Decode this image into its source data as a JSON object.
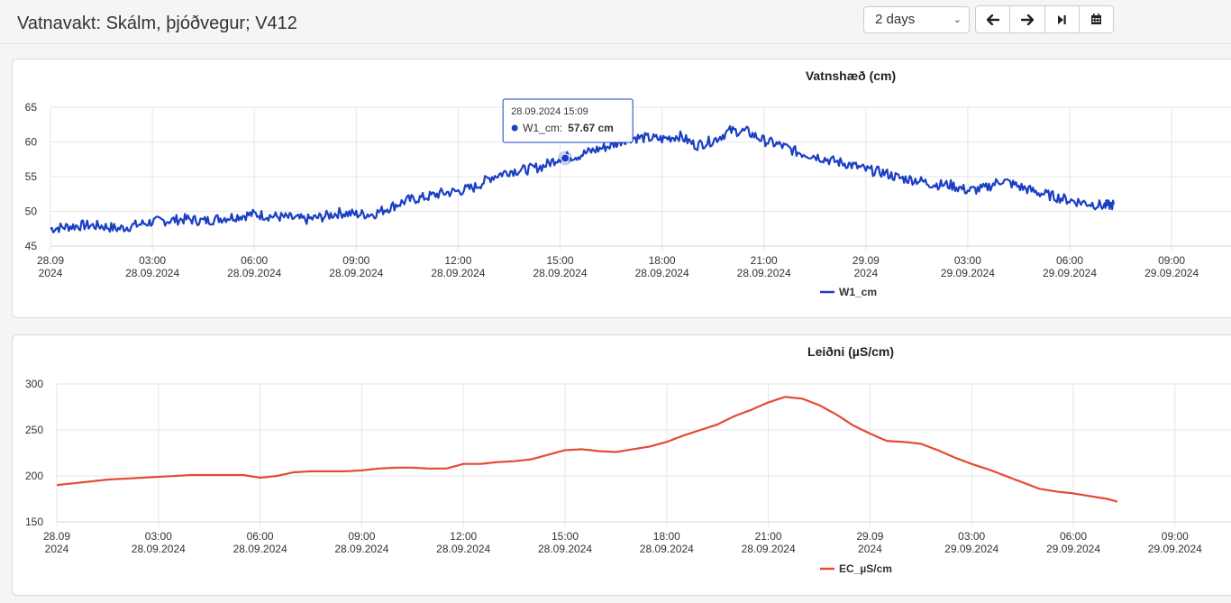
{
  "page": {
    "title": "Vatnavakt: Skálm, þjóðvegur; V412"
  },
  "controls": {
    "period": "2 days",
    "buttons": [
      {
        "name": "back-button",
        "icon": "arrow-left-icon"
      },
      {
        "name": "forward-button",
        "icon": "arrow-right-icon"
      },
      {
        "name": "latest-button",
        "icon": "step-forward-icon"
      },
      {
        "name": "calendar-button",
        "icon": "calendar-icon"
      }
    ]
  },
  "chart_data": [
    {
      "type": "line",
      "title": "Vatnshæð (cm)",
      "ylim": [
        45,
        65
      ],
      "yticks": [
        45,
        50,
        55,
        60,
        65
      ],
      "grid": true,
      "legend_placement": "bottom-center",
      "color": "#1b3fc4",
      "xticks": [
        {
          "hour": 0,
          "line1": "28.09",
          "line2": "2024"
        },
        {
          "hour": 3,
          "line1": "03:00",
          "line2": "28.09.2024"
        },
        {
          "hour": 6,
          "line1": "06:00",
          "line2": "28.09.2024"
        },
        {
          "hour": 9,
          "line1": "09:00",
          "line2": "28.09.2024"
        },
        {
          "hour": 12,
          "line1": "12:00",
          "line2": "28.09.2024"
        },
        {
          "hour": 15,
          "line1": "15:00",
          "line2": "28.09.2024"
        },
        {
          "hour": 18,
          "line1": "18:00",
          "line2": "28.09.2024"
        },
        {
          "hour": 21,
          "line1": "21:00",
          "line2": "28.09.2024"
        },
        {
          "hour": 24,
          "line1": "29.09",
          "line2": "2024"
        },
        {
          "hour": 27,
          "line1": "03:00",
          "line2": "29.09.2024"
        },
        {
          "hour": 30,
          "line1": "06:00",
          "line2": "29.09.2024"
        },
        {
          "hour": 33,
          "line1": "09:00",
          "line2": "29.09.2024"
        }
      ],
      "series": [
        {
          "name": "W1_cm",
          "x_hours": [
            0,
            0.5,
            1,
            1.5,
            2,
            2.5,
            3,
            3.5,
            4,
            4.5,
            5,
            5.5,
            6,
            6.5,
            7,
            7.5,
            8,
            8.5,
            9,
            9.5,
            10,
            10.5,
            11,
            11.5,
            12,
            12.5,
            13,
            13.5,
            14,
            14.5,
            15,
            15.5,
            16,
            16.5,
            17,
            17.5,
            18,
            18.5,
            19,
            19.5,
            20,
            20.5,
            21,
            21.5,
            22,
            22.5,
            23,
            23.5,
            24,
            24.5,
            25,
            25.5,
            26,
            26.5,
            27,
            27.5,
            28,
            28.5,
            29,
            29.5,
            30,
            30.5,
            31,
            31.3
          ],
          "values": [
            47.5,
            47.8,
            48.0,
            47.9,
            47.5,
            48.0,
            48.5,
            48.7,
            48.9,
            48.6,
            49.0,
            49.3,
            49.6,
            49.3,
            49.1,
            48.8,
            49.2,
            49.8,
            49.6,
            49.6,
            50.6,
            51.6,
            52.0,
            52.6,
            52.9,
            53.5,
            55.0,
            55.8,
            56.0,
            56.5,
            57.8,
            58.0,
            58.8,
            59.5,
            60.6,
            60.6,
            60.4,
            60.9,
            59.5,
            60.2,
            61.6,
            61.5,
            60.2,
            59.5,
            58.5,
            58.0,
            57.3,
            56.8,
            56.0,
            55.6,
            54.8,
            54.5,
            53.9,
            53.8,
            53.0,
            53.3,
            54.5,
            53.6,
            52.8,
            52.2,
            51.6,
            51.2,
            50.8,
            51.0
          ]
        }
      ],
      "tooltip": {
        "time": "28.09.2024 15:09",
        "series_label": "W1_cm:",
        "value_text": "57.67 cm",
        "hour": 15.15,
        "value": 57.67
      }
    },
    {
      "type": "line",
      "title": "Leiðni (µS/cm)",
      "ylim": [
        150,
        300
      ],
      "yticks": [
        150,
        200,
        250,
        300
      ],
      "grid": true,
      "legend_placement": "bottom-center",
      "color": "#e54a32",
      "xticks": [
        {
          "hour": 0,
          "line1": "28.09",
          "line2": "2024"
        },
        {
          "hour": 3,
          "line1": "03:00",
          "line2": "28.09.2024"
        },
        {
          "hour": 6,
          "line1": "06:00",
          "line2": "28.09.2024"
        },
        {
          "hour": 9,
          "line1": "09:00",
          "line2": "28.09.2024"
        },
        {
          "hour": 12,
          "line1": "12:00",
          "line2": "28.09.2024"
        },
        {
          "hour": 15,
          "line1": "15:00",
          "line2": "28.09.2024"
        },
        {
          "hour": 18,
          "line1": "18:00",
          "line2": "28.09.2024"
        },
        {
          "hour": 21,
          "line1": "21:00",
          "line2": "28.09.2024"
        },
        {
          "hour": 24,
          "line1": "29.09",
          "line2": "2024"
        },
        {
          "hour": 27,
          "line1": "03:00",
          "line2": "29.09.2024"
        },
        {
          "hour": 30,
          "line1": "06:00",
          "line2": "29.09.2024"
        },
        {
          "hour": 33,
          "line1": "09:00",
          "line2": "29.09.2024"
        }
      ],
      "series": [
        {
          "name": "EC_µS/cm",
          "x_hours": [
            0,
            0.5,
            1,
            1.5,
            2,
            2.5,
            3,
            3.5,
            4,
            4.5,
            5,
            5.5,
            6,
            6.5,
            7,
            7.5,
            8,
            8.5,
            9,
            9.5,
            10,
            10.5,
            11,
            11.5,
            12,
            12.5,
            13,
            13.5,
            14,
            14.5,
            15,
            15.5,
            16,
            16.5,
            17,
            17.5,
            18,
            18.5,
            19,
            19.5,
            20,
            20.5,
            21,
            21.5,
            22,
            22.5,
            23,
            23.5,
            24,
            24.5,
            25,
            25.5,
            26,
            26.5,
            27,
            27.5,
            28,
            28.5,
            29,
            29.5,
            30,
            30.5,
            31,
            31.3
          ],
          "values": [
            190,
            192,
            194,
            196,
            197,
            198,
            199,
            200,
            201,
            201,
            201,
            201,
            198,
            200,
            204,
            205,
            205,
            205,
            206,
            208,
            209,
            209,
            208,
            208,
            213,
            213,
            215,
            216,
            218,
            223,
            228,
            229,
            227,
            226,
            229,
            232,
            237,
            244,
            250,
            256,
            265,
            272,
            280,
            286,
            284,
            277,
            267,
            255,
            246,
            238,
            237,
            235,
            228,
            220,
            213,
            207,
            200,
            193,
            186,
            183,
            181,
            178,
            175,
            172
          ]
        }
      ]
    }
  ]
}
